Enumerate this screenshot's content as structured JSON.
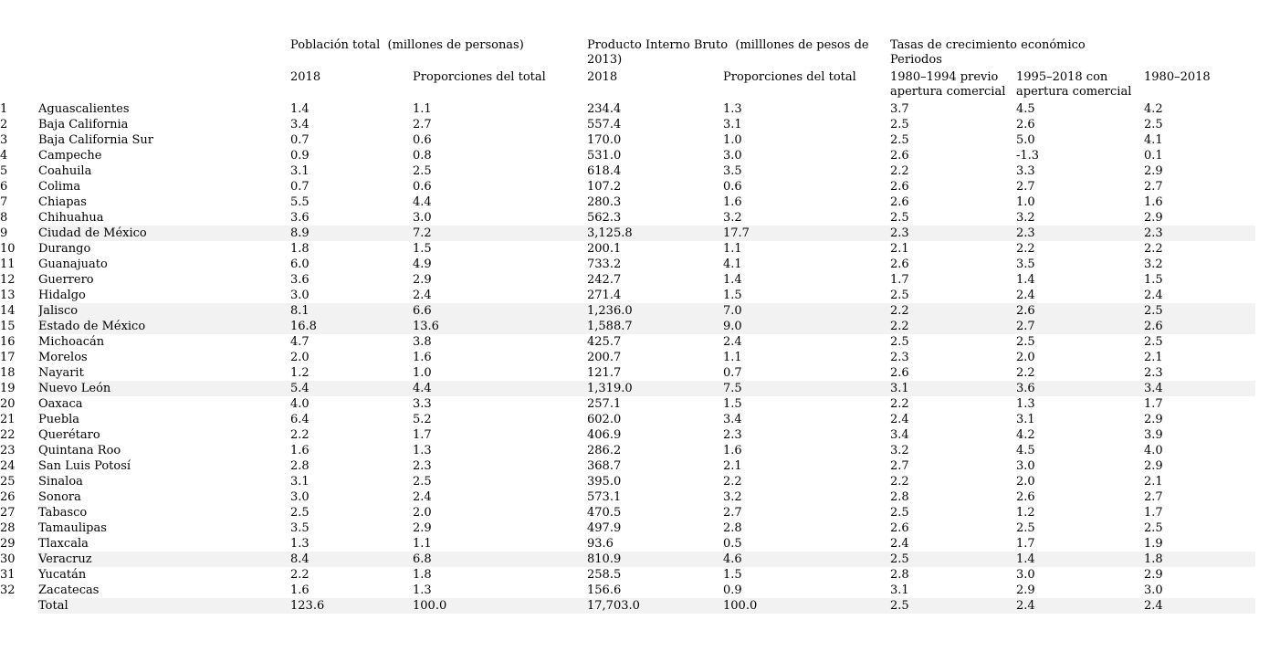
{
  "colors": {
    "background": "#ffffff",
    "text": "#000000",
    "highlight_row": "#f2f2f2"
  },
  "table": {
    "group_headers": {
      "poblacion": "Población total  (millones de personas)",
      "pib": "Producto Interno Bruto  (milllones de pesos de 2013)",
      "tasas_line1": "Tasas de crecimiento económico",
      "tasas_line2": "Periodos"
    },
    "sub_headers": {
      "pop_year": "2018",
      "pop_share": "Proporciones del total",
      "gdp_year": "2018",
      "gdp_share": "Proporciones del total",
      "period_1": "1980–1994 previo apertura comercial",
      "period_2": "1995–2018 con apertura comercial",
      "period_3": "1980–2018"
    },
    "rows": [
      {
        "num": "1",
        "state": "Aguascalientes",
        "pop": "1.4",
        "pop_share": "1.1",
        "gdp": "234.4",
        "gdp_share": "1.3",
        "g1980_1994": "3.7",
        "g1995_2018": "4.5",
        "g1980_2018": "4.2",
        "highlight": false
      },
      {
        "num": "2",
        "state": "Baja California",
        "pop": "3.4",
        "pop_share": "2.7",
        "gdp": "557.4",
        "gdp_share": "3.1",
        "g1980_1994": "2.5",
        "g1995_2018": "2.6",
        "g1980_2018": "2.5",
        "highlight": false
      },
      {
        "num": "3",
        "state": "Baja California Sur",
        "pop": "0.7",
        "pop_share": "0.6",
        "gdp": "170.0",
        "gdp_share": "1.0",
        "g1980_1994": "2.5",
        "g1995_2018": "5.0",
        "g1980_2018": "4.1",
        "highlight": false
      },
      {
        "num": "4",
        "state": "Campeche",
        "pop": "0.9",
        "pop_share": "0.8",
        "gdp": "531.0",
        "gdp_share": "3.0",
        "g1980_1994": "2.6",
        "g1995_2018": "-1.3",
        "g1980_2018": "0.1",
        "highlight": false
      },
      {
        "num": "5",
        "state": "Coahuila",
        "pop": "3.1",
        "pop_share": "2.5",
        "gdp": "618.4",
        "gdp_share": "3.5",
        "g1980_1994": "2.2",
        "g1995_2018": "3.3",
        "g1980_2018": "2.9",
        "highlight": false
      },
      {
        "num": "6",
        "state": "Colima",
        "pop": "0.7",
        "pop_share": "0.6",
        "gdp": "107.2",
        "gdp_share": "0.6",
        "g1980_1994": "2.6",
        "g1995_2018": "2.7",
        "g1980_2018": "2.7",
        "highlight": false
      },
      {
        "num": "7",
        "state": "Chiapas",
        "pop": "5.5",
        "pop_share": "4.4",
        "gdp": "280.3",
        "gdp_share": "1.6",
        "g1980_1994": "2.6",
        "g1995_2018": "1.0",
        "g1980_2018": "1.6",
        "highlight": false
      },
      {
        "num": "8",
        "state": "Chihuahua",
        "pop": "3.6",
        "pop_share": "3.0",
        "gdp": "562.3",
        "gdp_share": "3.2",
        "g1980_1994": "2.5",
        "g1995_2018": "3.2",
        "g1980_2018": "2.9",
        "highlight": false
      },
      {
        "num": "9",
        "state": "Ciudad de México",
        "pop": "8.9",
        "pop_share": "7.2",
        "gdp": "3,125.8",
        "gdp_share": "17.7",
        "g1980_1994": "2.3",
        "g1995_2018": "2.3",
        "g1980_2018": "2.3",
        "highlight": true
      },
      {
        "num": "10",
        "state": "Durango",
        "pop": "1.8",
        "pop_share": "1.5",
        "gdp": "200.1",
        "gdp_share": "1.1",
        "g1980_1994": "2.1",
        "g1995_2018": "2.2",
        "g1980_2018": "2.2",
        "highlight": false
      },
      {
        "num": "11",
        "state": "Guanajuato",
        "pop": "6.0",
        "pop_share": "4.9",
        "gdp": "733.2",
        "gdp_share": "4.1",
        "g1980_1994": "2.6",
        "g1995_2018": "3.5",
        "g1980_2018": "3.2",
        "highlight": false
      },
      {
        "num": "12",
        "state": "Guerrero",
        "pop": "3.6",
        "pop_share": "2.9",
        "gdp": "242.7",
        "gdp_share": "1.4",
        "g1980_1994": "1.7",
        "g1995_2018": "1.4",
        "g1980_2018": "1.5",
        "highlight": false
      },
      {
        "num": "13",
        "state": "Hidalgo",
        "pop": "3.0",
        "pop_share": "2.4",
        "gdp": "271.4",
        "gdp_share": "1.5",
        "g1980_1994": "2.5",
        "g1995_2018": "2.4",
        "g1980_2018": "2.4",
        "highlight": false
      },
      {
        "num": "14",
        "state": "Jalisco",
        "pop": "8.1",
        "pop_share": "6.6",
        "gdp": "1,236.0",
        "gdp_share": "7.0",
        "g1980_1994": "2.2",
        "g1995_2018": "2.6",
        "g1980_2018": "2.5",
        "highlight": true
      },
      {
        "num": "15",
        "state": "Estado de México",
        "pop": "16.8",
        "pop_share": "13.6",
        "gdp": "1,588.7",
        "gdp_share": "9.0",
        "g1980_1994": "2.2",
        "g1995_2018": "2.7",
        "g1980_2018": "2.6",
        "highlight": true
      },
      {
        "num": "16",
        "state": "Michoacán",
        "pop": "4.7",
        "pop_share": "3.8",
        "gdp": "425.7",
        "gdp_share": "2.4",
        "g1980_1994": "2.5",
        "g1995_2018": "2.5",
        "g1980_2018": "2.5",
        "highlight": false
      },
      {
        "num": "17",
        "state": "Morelos",
        "pop": "2.0",
        "pop_share": "1.6",
        "gdp": "200.7",
        "gdp_share": "1.1",
        "g1980_1994": "2.3",
        "g1995_2018": "2.0",
        "g1980_2018": "2.1",
        "highlight": false
      },
      {
        "num": "18",
        "state": "Nayarit",
        "pop": "1.2",
        "pop_share": "1.0",
        "gdp": "121.7",
        "gdp_share": "0.7",
        "g1980_1994": "2.6",
        "g1995_2018": "2.2",
        "g1980_2018": "2.3",
        "highlight": false
      },
      {
        "num": "19",
        "state": "Nuevo León",
        "pop": "5.4",
        "pop_share": "4.4",
        "gdp": "1,319.0",
        "gdp_share": "7.5",
        "g1980_1994": "3.1",
        "g1995_2018": "3.6",
        "g1980_2018": "3.4",
        "highlight": true
      },
      {
        "num": "20",
        "state": "Oaxaca",
        "pop": "4.0",
        "pop_share": "3.3",
        "gdp": "257.1",
        "gdp_share": "1.5",
        "g1980_1994": "2.2",
        "g1995_2018": "1.3",
        "g1980_2018": "1.7",
        "highlight": false
      },
      {
        "num": "21",
        "state": "Puebla",
        "pop": "6.4",
        "pop_share": "5.2",
        "gdp": "602.0",
        "gdp_share": "3.4",
        "g1980_1994": "2.4",
        "g1995_2018": "3.1",
        "g1980_2018": "2.9",
        "highlight": false
      },
      {
        "num": "22",
        "state": "Querétaro",
        "pop": "2.2",
        "pop_share": "1.7",
        "gdp": "406.9",
        "gdp_share": "2.3",
        "g1980_1994": "3.4",
        "g1995_2018": "4.2",
        "g1980_2018": "3.9",
        "highlight": false
      },
      {
        "num": "23",
        "state": "Quintana Roo",
        "pop": "1.6",
        "pop_share": "1.3",
        "gdp": "286.2",
        "gdp_share": "1.6",
        "g1980_1994": "3.2",
        "g1995_2018": "4.5",
        "g1980_2018": "4.0",
        "highlight": false
      },
      {
        "num": "24",
        "state": "San Luis Potosí",
        "pop": "2.8",
        "pop_share": "2.3",
        "gdp": "368.7",
        "gdp_share": "2.1",
        "g1980_1994": "2.7",
        "g1995_2018": "3.0",
        "g1980_2018": "2.9",
        "highlight": false
      },
      {
        "num": "25",
        "state": "Sinaloa",
        "pop": "3.1",
        "pop_share": "2.5",
        "gdp": "395.0",
        "gdp_share": "2.2",
        "g1980_1994": "2.2",
        "g1995_2018": "2.0",
        "g1980_2018": "2.1",
        "highlight": false
      },
      {
        "num": "26",
        "state": "Sonora",
        "pop": "3.0",
        "pop_share": "2.4",
        "gdp": "573.1",
        "gdp_share": "3.2",
        "g1980_1994": "2.8",
        "g1995_2018": "2.6",
        "g1980_2018": "2.7",
        "highlight": false
      },
      {
        "num": "27",
        "state": "Tabasco",
        "pop": "2.5",
        "pop_share": "2.0",
        "gdp": "470.5",
        "gdp_share": "2.7",
        "g1980_1994": "2.5",
        "g1995_2018": "1.2",
        "g1980_2018": "1.7",
        "highlight": false
      },
      {
        "num": "28",
        "state": "Tamaulipas",
        "pop": "3.5",
        "pop_share": "2.9",
        "gdp": "497.9",
        "gdp_share": "2.8",
        "g1980_1994": "2.6",
        "g1995_2018": "2.5",
        "g1980_2018": "2.5",
        "highlight": false
      },
      {
        "num": "29",
        "state": "Tlaxcala",
        "pop": "1.3",
        "pop_share": "1.1",
        "gdp": "93.6",
        "gdp_share": "0.5",
        "g1980_1994": "2.4",
        "g1995_2018": "1.7",
        "g1980_2018": "1.9",
        "highlight": false
      },
      {
        "num": "30",
        "state": "Veracruz",
        "pop": "8.4",
        "pop_share": "6.8",
        "gdp": "810.9",
        "gdp_share": "4.6",
        "g1980_1994": "2.5",
        "g1995_2018": "1.4",
        "g1980_2018": "1.8",
        "highlight": true
      },
      {
        "num": "31",
        "state": "Yucatán",
        "pop": "2.2",
        "pop_share": "1.8",
        "gdp": "258.5",
        "gdp_share": "1.5",
        "g1980_1994": "2.8",
        "g1995_2018": "3.0",
        "g1980_2018": "2.9",
        "highlight": false
      },
      {
        "num": "32",
        "state": "Zacatecas",
        "pop": "1.6",
        "pop_share": "1.3",
        "gdp": "156.6",
        "gdp_share": "0.9",
        "g1980_1994": "3.1",
        "g1995_2018": "2.9",
        "g1980_2018": "3.0",
        "highlight": false
      },
      {
        "num": "",
        "state": "Total",
        "pop": "123.6",
        "pop_share": "100.0",
        "gdp": "17,703.0",
        "gdp_share": "100.0",
        "g1980_1994": "2.5",
        "g1995_2018": "2.4",
        "g1980_2018": "2.4",
        "highlight": true
      }
    ]
  }
}
